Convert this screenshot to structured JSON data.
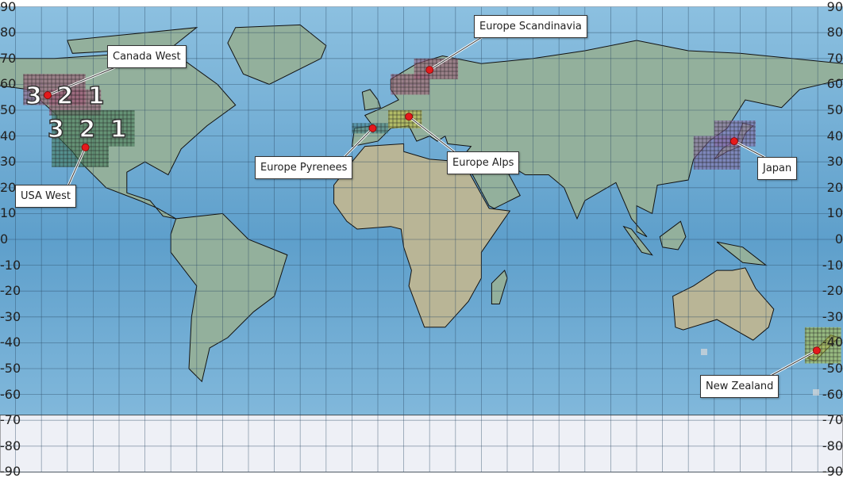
{
  "map": {
    "projection": "equirectangular",
    "lat_ticks": [
      90,
      80,
      70,
      60,
      50,
      40,
      30,
      20,
      10,
      0,
      -10,
      -20,
      -30,
      -40,
      -50,
      -60,
      -70,
      -80,
      -90
    ],
    "grid": true,
    "colors": {
      "ocean": "#5e9fcb",
      "land": "#b9b596",
      "land_green": "#93b09c",
      "ice": "#eef0f6",
      "marker": "#e41a1c"
    },
    "regions": [
      {
        "name": "Canada West",
        "lat": 55.8,
        "lon": -127.6,
        "color": "#a05a78",
        "zone_numbers": "3 2 1"
      },
      {
        "name": "USA West",
        "lat": 35.6,
        "lon": -113,
        "color": "#3f7a55",
        "zone_numbers": "3 2 1"
      },
      {
        "name": "Europe Scandinavia",
        "lat": 65.6,
        "lon": 20,
        "color": "#a05a78"
      },
      {
        "name": "Europe Pyrenees",
        "lat": 43,
        "lon": -2,
        "color": "#3c7f86"
      },
      {
        "name": "Europe Alps",
        "lat": 47.5,
        "lon": 12,
        "color": "#c8c23a"
      },
      {
        "name": "Japan",
        "lat": 38,
        "lon": 137.7,
        "color": "#8a6aa8"
      },
      {
        "name": "New Zealand",
        "lat": -43,
        "lon": 169.6,
        "color": "#b5c23a"
      }
    ]
  }
}
